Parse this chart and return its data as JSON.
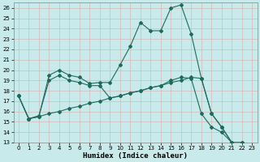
{
  "xlabel": "Humidex (Indice chaleur)",
  "xlim_min": -0.5,
  "xlim_max": 23.5,
  "ylim_min": 13,
  "ylim_max": 26.5,
  "xticks": [
    0,
    1,
    2,
    3,
    4,
    5,
    6,
    7,
    8,
    9,
    10,
    11,
    12,
    13,
    14,
    15,
    16,
    17,
    18,
    19,
    20,
    21,
    22,
    23
  ],
  "yticks": [
    13,
    14,
    15,
    16,
    17,
    18,
    19,
    20,
    21,
    22,
    23,
    24,
    25,
    26
  ],
  "background_color": "#c8eaea",
  "grid_color": "#e0e0e0",
  "line_color": "#1e6b5e",
  "line1_y": [
    17.5,
    15.3,
    15.5,
    19.5,
    20.0,
    19.5,
    19.3,
    18.7,
    18.8,
    18.8,
    20.5,
    22.3,
    24.6,
    23.8,
    23.8,
    26.0,
    26.3,
    23.5,
    19.2,
    15.8,
    14.5,
    13.0,
    13.0
  ],
  "line2_y": [
    17.5,
    15.3,
    15.5,
    15.8,
    16.0,
    16.3,
    16.5,
    16.8,
    17.0,
    17.3,
    17.5,
    17.8,
    18.0,
    18.3,
    18.5,
    18.8,
    19.0,
    19.3,
    19.2,
    15.8,
    14.5,
    13.0,
    13.0
  ],
  "line3_y": [
    17.5,
    15.3,
    15.6,
    19.0,
    19.5,
    19.0,
    18.8,
    18.5,
    18.5,
    17.3,
    17.5,
    17.8,
    18.0,
    18.3,
    18.5,
    19.0,
    19.3,
    19.2,
    15.8,
    14.5,
    14.0,
    13.0
  ],
  "line1_x": [
    0,
    1,
    2,
    3,
    4,
    5,
    6,
    7,
    8,
    9,
    10,
    11,
    12,
    13,
    14,
    15,
    16,
    17,
    18,
    19,
    20,
    21,
    22
  ],
  "line2_x": [
    0,
    1,
    2,
    3,
    4,
    5,
    6,
    7,
    8,
    9,
    10,
    11,
    12,
    13,
    14,
    15,
    16,
    17,
    18,
    19,
    20,
    21,
    22
  ],
  "line3_x": [
    0,
    1,
    2,
    3,
    4,
    5,
    6,
    7,
    8,
    9,
    10,
    11,
    12,
    13,
    14,
    15,
    16,
    17,
    18,
    19,
    20,
    21
  ],
  "marker": "D",
  "markersize": 2.0,
  "linewidth": 0.8,
  "tick_fontsize": 5,
  "label_fontsize": 6.5
}
